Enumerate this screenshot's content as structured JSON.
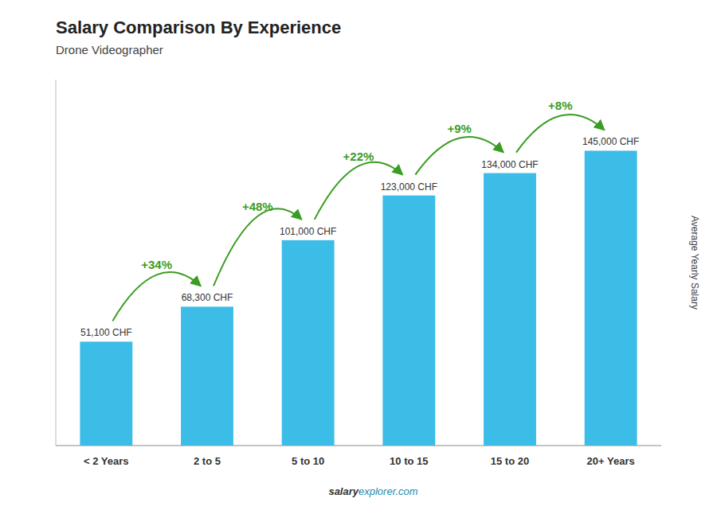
{
  "chart_data": {
    "type": "bar",
    "title": "Salary Comparison By Experience",
    "subtitle": "Drone Videographer",
    "ylabel": "Average Yearly Salary",
    "categories": [
      "< 2 Years",
      "2 to 5",
      "5 to 10",
      "10 to 15",
      "15 to 20",
      "20+ Years"
    ],
    "values": [
      51100,
      68300,
      101000,
      123000,
      134000,
      145000
    ],
    "value_labels": [
      "51,100 CHF",
      "68,300 CHF",
      "101,000 CHF",
      "123,000 CHF",
      "134,000 CHF",
      "145,000 CHF"
    ],
    "data_labels": true,
    "annotations": [
      "+34%",
      "+48%",
      "+22%",
      "+9%",
      "+8%"
    ],
    "footer": [
      "salary",
      "explorer.com"
    ],
    "color": "#3bbde8",
    "ylim": [
      0,
      180000
    ],
    "yticks": [],
    "tick_labels": "x"
  }
}
